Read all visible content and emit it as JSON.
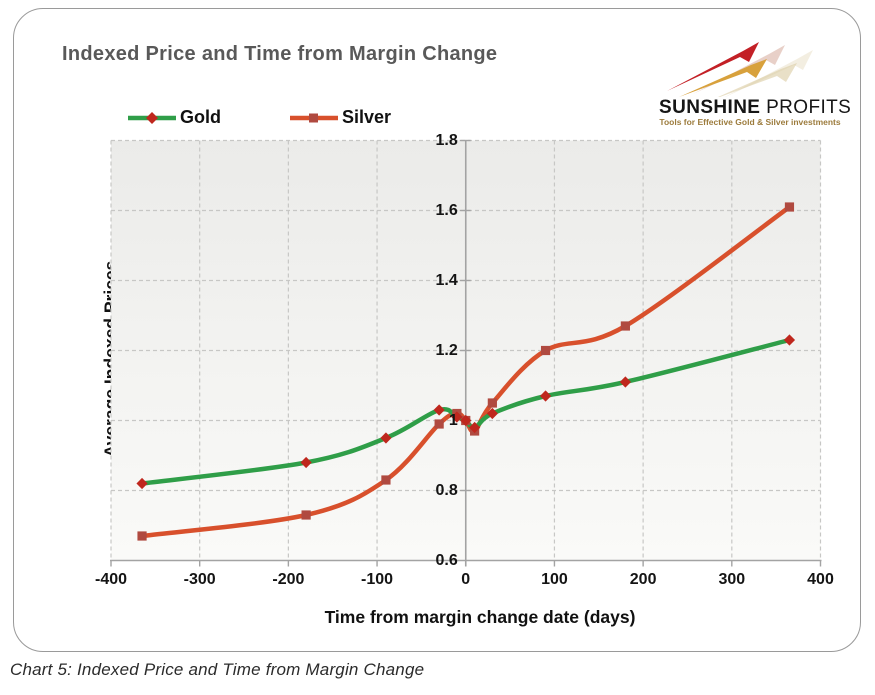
{
  "title": "Indexed Price and Time from Margin Change",
  "logo": {
    "brand_bold": "SUNSHINE",
    "brand_light": "PROFITS",
    "tagline": "Tools for Effective Gold & Silver investments",
    "colors": {
      "red": "#c32026",
      "gold": "#d8a13c",
      "echo_red": "#d8b0a4",
      "echo_gold": "#ddcfa9"
    }
  },
  "caption": "Chart 5: Indexed Price and Time from Margin Change",
  "colors": {
    "grid": "#c7c7c5",
    "axis": "#a3a3a3",
    "plot_bg_top": "#ebebe9",
    "plot_bg_bottom": "#fafaf8",
    "title_text": "#595959"
  },
  "chart_data": {
    "type": "line",
    "smooth": true,
    "title": "Indexed Price and Time from Margin Change",
    "xlabel": "Time from margin change date (days)",
    "ylabel": "Average Indexed Prices",
    "xlim": [
      -400,
      400
    ],
    "ylim": [
      0.6,
      1.8
    ],
    "x_ticks": [
      -400,
      -300,
      -200,
      -100,
      0,
      100,
      200,
      300,
      400
    ],
    "y_ticks": [
      0.6,
      0.8,
      1,
      1.2,
      1.4,
      1.6,
      1.8
    ],
    "y_tick_labels": [
      "0.6",
      "0.8",
      "1",
      "1.2",
      "1.4",
      "1.6",
      "1.8"
    ],
    "grid": "dashed",
    "legend_position": "top-left",
    "x": [
      -365,
      -180,
      -90,
      -30,
      -10,
      0,
      10,
      30,
      90,
      180,
      365
    ],
    "series": [
      {
        "name": "Gold",
        "color": "#2f9e48",
        "marker": "diamond",
        "marker_color": "#bf271d",
        "values": [
          0.82,
          0.88,
          0.95,
          1.03,
          1.01,
          1.0,
          0.98,
          1.02,
          1.07,
          1.11,
          1.23
        ]
      },
      {
        "name": "Silver",
        "color": "#d8502c",
        "marker": "square",
        "marker_color": "#b04a40",
        "values": [
          0.67,
          0.73,
          0.83,
          0.99,
          1.02,
          1.0,
          0.97,
          1.05,
          1.2,
          1.27,
          1.61
        ]
      }
    ]
  }
}
